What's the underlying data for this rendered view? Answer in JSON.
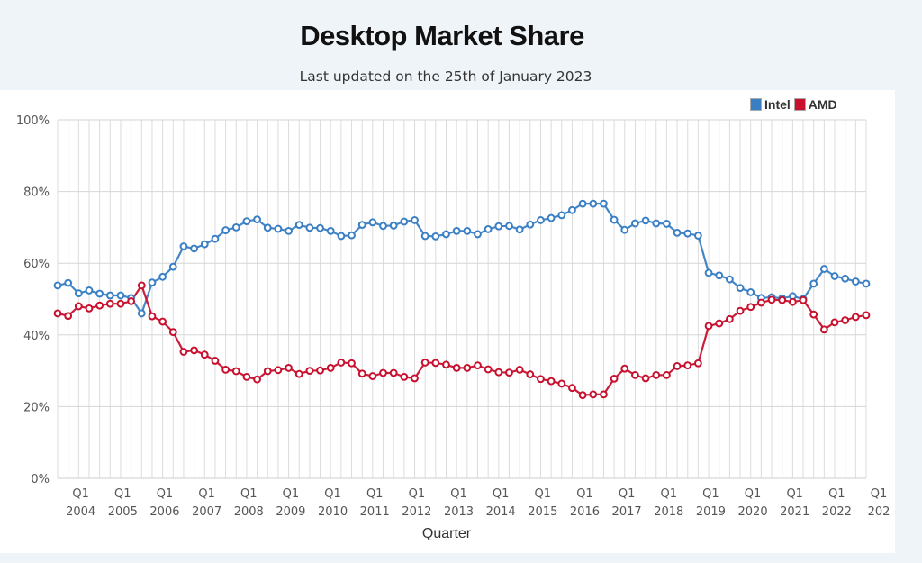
{
  "page": {
    "title": "Desktop Market Share",
    "subtitle": "Last updated on the 25th of January 2023"
  },
  "chart_data": {
    "type": "line",
    "title": "Desktop Market Share",
    "subtitle": "Last updated on the 25th of January 2023",
    "xlabel": "Quarter",
    "ylabel": "",
    "ylim": [
      0,
      100
    ],
    "yticks": [
      "0%",
      "20%",
      "40%",
      "60%",
      "80%",
      "100%"
    ],
    "ytick_values": [
      0,
      20,
      40,
      60,
      80,
      100
    ],
    "grid": true,
    "legend": "top-right",
    "x_start": "Q4 2003",
    "x_end": "Q4 2022",
    "xtick_labels": [
      {
        "q": "Q1",
        "year": "2004",
        "index": 1
      },
      {
        "q": "Q1",
        "year": "2005",
        "index": 5
      },
      {
        "q": "Q1",
        "year": "2006",
        "index": 9
      },
      {
        "q": "Q1",
        "year": "2007",
        "index": 13
      },
      {
        "q": "Q1",
        "year": "2008",
        "index": 17
      },
      {
        "q": "Q1",
        "year": "2009",
        "index": 21
      },
      {
        "q": "Q1",
        "year": "2010",
        "index": 25
      },
      {
        "q": "Q1",
        "year": "2011",
        "index": 29
      },
      {
        "q": "Q1",
        "year": "2012",
        "index": 33
      },
      {
        "q": "Q1",
        "year": "2013",
        "index": 37
      },
      {
        "q": "Q1",
        "year": "2014",
        "index": 41
      },
      {
        "q": "Q1",
        "year": "2015",
        "index": 45
      },
      {
        "q": "Q1",
        "year": "2016",
        "index": 49
      },
      {
        "q": "Q1",
        "year": "2017",
        "index": 53
      },
      {
        "q": "Q1",
        "year": "2018",
        "index": 57
      },
      {
        "q": "Q1",
        "year": "2019",
        "index": 61
      },
      {
        "q": "Q1",
        "year": "2020",
        "index": 65
      },
      {
        "q": "Q1",
        "year": "2021",
        "index": 69
      },
      {
        "q": "Q1",
        "year": "2022",
        "index": 73
      },
      {
        "q": "Q1",
        "year": "202",
        "index": 77
      }
    ],
    "series": [
      {
        "name": "Intel",
        "color": "#3a7fc4",
        "values": [
          53.8,
          54.5,
          51.6,
          52.4,
          51.5,
          51.0,
          51.0,
          50.3,
          46.0,
          54.6,
          56.2,
          59.0,
          64.7,
          64.1,
          65.3,
          66.8,
          69.2,
          70.0,
          71.7,
          72.2,
          69.9,
          69.6,
          69.0,
          70.7,
          69.9,
          69.8,
          69.0,
          67.6,
          67.8,
          70.7,
          71.4,
          70.4,
          70.5,
          71.6,
          72.0,
          67.6,
          67.5,
          68.1,
          69.0,
          69.0,
          68.1,
          69.5,
          70.3,
          70.4,
          69.4,
          70.8,
          72.0,
          72.6,
          73.4,
          74.8,
          76.6,
          76.6,
          76.6,
          72.1,
          69.3,
          71.1,
          71.9,
          71.1,
          71.0,
          68.5,
          68.3,
          67.7,
          57.3,
          56.6,
          55.5,
          53.1,
          51.9,
          50.3,
          50.5,
          50.2,
          50.8,
          50.0,
          54.3,
          58.4,
          56.4,
          55.7,
          54.9,
          54.3
        ]
      },
      {
        "name": "AMD",
        "color": "#c8102e",
        "values": [
          46.0,
          45.3,
          48.0,
          47.4,
          48.2,
          48.7,
          48.7,
          49.4,
          53.8,
          45.2,
          43.7,
          40.8,
          35.3,
          35.7,
          34.5,
          32.8,
          30.3,
          29.9,
          28.3,
          27.6,
          29.9,
          30.2,
          30.8,
          29.1,
          30.0,
          30.1,
          30.8,
          32.3,
          32.1,
          29.2,
          28.5,
          29.4,
          29.4,
          28.3,
          27.9,
          32.3,
          32.2,
          31.7,
          30.8,
          30.8,
          31.5,
          30.4,
          29.6,
          29.5,
          30.3,
          29.0,
          27.7,
          27.1,
          26.4,
          25.2,
          23.2,
          23.4,
          23.4,
          27.8,
          30.6,
          28.8,
          27.9,
          28.8,
          28.8,
          31.3,
          31.5,
          32.1,
          42.5,
          43.2,
          44.4,
          46.7,
          47.8,
          49.0,
          49.8,
          49.7,
          49.2,
          49.7,
          45.7,
          41.5,
          43.5,
          44.1,
          45.0,
          45.5
        ]
      }
    ]
  },
  "legend": {
    "items": [
      {
        "label": "Intel",
        "color": "#3a7fc4"
      },
      {
        "label": "AMD",
        "color": "#c8102e"
      }
    ]
  }
}
